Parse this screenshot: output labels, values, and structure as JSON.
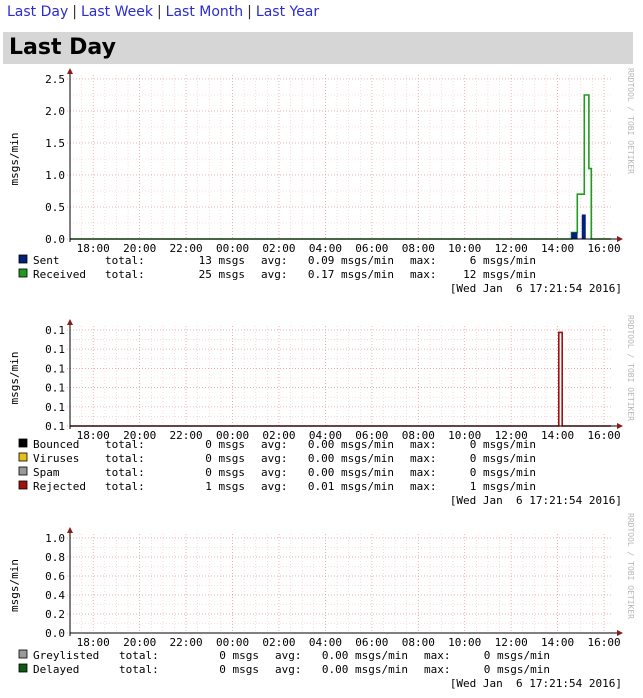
{
  "nav": {
    "links": [
      "Last Day",
      "Last Week",
      "Last Month",
      "Last Year"
    ],
    "separator": "|"
  },
  "page_title": "Last Day",
  "watermark": "RRDTOOL / TOBI OETIKER",
  "chart_data": [
    {
      "type": "area",
      "ylabel": "msgs/min",
      "ylim": [
        0,
        2.5
      ],
      "y_ticks": [
        "0.0",
        "0.5",
        "1.0",
        "1.5",
        "2.0",
        "2.5"
      ],
      "x_ticks": [
        "18:00",
        "20:00",
        "22:00",
        "00:00",
        "02:00",
        "04:00",
        "06:00",
        "08:00",
        "10:00",
        "12:00",
        "14:00",
        "16:00"
      ],
      "x_hours": [
        17,
        40.3
      ],
      "grid": true,
      "series": [
        {
          "name": "Received",
          "color": "#1f9b1f",
          "style": "line",
          "points": [
            [
              17,
              0
            ],
            [
              38.6,
              0
            ],
            [
              38.6,
              0.1
            ],
            [
              38.85,
              0.1
            ],
            [
              38.85,
              0.7
            ],
            [
              39.15,
              0.7
            ],
            [
              39.15,
              2.25
            ],
            [
              39.35,
              2.25
            ],
            [
              39.35,
              1.1
            ],
            [
              39.45,
              1.1
            ],
            [
              39.45,
              0
            ],
            [
              40.3,
              0
            ]
          ],
          "legend": {
            "total": "25 msgs",
            "avg": "0.17 msgs/min",
            "max": "12 msgs/min"
          }
        },
        {
          "name": "Sent",
          "color": "#00207a",
          "style": "area",
          "points": [
            [
              17,
              0
            ],
            [
              38.6,
              0
            ],
            [
              38.6,
              0.1
            ],
            [
              38.85,
              0.1
            ],
            [
              38.85,
              0
            ],
            [
              39.05,
              0
            ],
            [
              39.05,
              0.38
            ],
            [
              39.2,
              0.38
            ],
            [
              39.2,
              0
            ],
            [
              40.3,
              0
            ]
          ],
          "legend": {
            "total": "13 msgs",
            "avg": "0.09 msgs/min",
            "max": "6 msgs/min"
          }
        }
      ],
      "legend_order": [
        1,
        0
      ],
      "timestamp": "[Wed Jan  6 17:21:54 2016]"
    },
    {
      "type": "area",
      "ylabel": "msgs/min",
      "ylim": [
        0,
        0.12
      ],
      "y_ticks": [
        "0.1",
        "0.1",
        "0.1",
        "0.1",
        "0.1",
        "0.1"
      ],
      "x_ticks": [
        "18:00",
        "20:00",
        "22:00",
        "00:00",
        "02:00",
        "04:00",
        "06:00",
        "08:00",
        "10:00",
        "12:00",
        "14:00",
        "16:00"
      ],
      "x_hours": [
        17,
        40.3
      ],
      "grid": true,
      "series": [
        {
          "name": "Bounced",
          "color": "#000000",
          "style": "area",
          "points": [],
          "legend": {
            "total": "0 msgs",
            "avg": "0.00 msgs/min",
            "max": "0 msgs/min"
          }
        },
        {
          "name": "Viruses",
          "color": "#e6c01a",
          "style": "area",
          "points": [],
          "legend": {
            "total": "0 msgs",
            "avg": "0.00 msgs/min",
            "max": "0 msgs/min"
          }
        },
        {
          "name": "Spam",
          "color": "#9a9a9a",
          "style": "area",
          "points": [],
          "legend": {
            "total": "0 msgs",
            "avg": "0.00 msgs/min",
            "max": "0 msgs/min"
          }
        },
        {
          "name": "Rejected",
          "color": "#a01010",
          "style": "line",
          "points": [
            [
              17,
              0
            ],
            [
              38.05,
              0
            ],
            [
              38.05,
              0.117
            ],
            [
              38.2,
              0.117
            ],
            [
              38.2,
              0
            ],
            [
              40.3,
              0
            ]
          ],
          "legend": {
            "total": "1 msgs",
            "avg": "0.01 msgs/min",
            "max": "1 msgs/min"
          }
        }
      ],
      "legend_order": [
        0,
        1,
        2,
        3
      ],
      "timestamp": "[Wed Jan  6 17:21:54 2016]"
    },
    {
      "type": "area",
      "ylabel": "msgs/min",
      "ylim": [
        0,
        1.0
      ],
      "y_ticks": [
        "0.0",
        "0.2",
        "0.4",
        "0.6",
        "0.8",
        "1.0"
      ],
      "x_ticks": [
        "18:00",
        "20:00",
        "22:00",
        "00:00",
        "02:00",
        "04:00",
        "06:00",
        "08:00",
        "10:00",
        "12:00",
        "14:00",
        "16:00"
      ],
      "x_hours": [
        17,
        40.3
      ],
      "grid": true,
      "series": [
        {
          "name": "Greylisted",
          "color": "#9a9a9a",
          "style": "area",
          "points": [],
          "legend": {
            "total": "0 msgs",
            "avg": "0.00 msgs/min",
            "max": "0 msgs/min"
          }
        },
        {
          "name": "Delayed",
          "color": "#0e5a14",
          "style": "area",
          "points": [],
          "legend": {
            "total": "0 msgs",
            "avg": "0.00 msgs/min",
            "max": "0 msgs/min"
          }
        }
      ],
      "legend_order": [
        0,
        1
      ],
      "timestamp": "[Wed Jan  6 17:21:54 2016]"
    }
  ]
}
